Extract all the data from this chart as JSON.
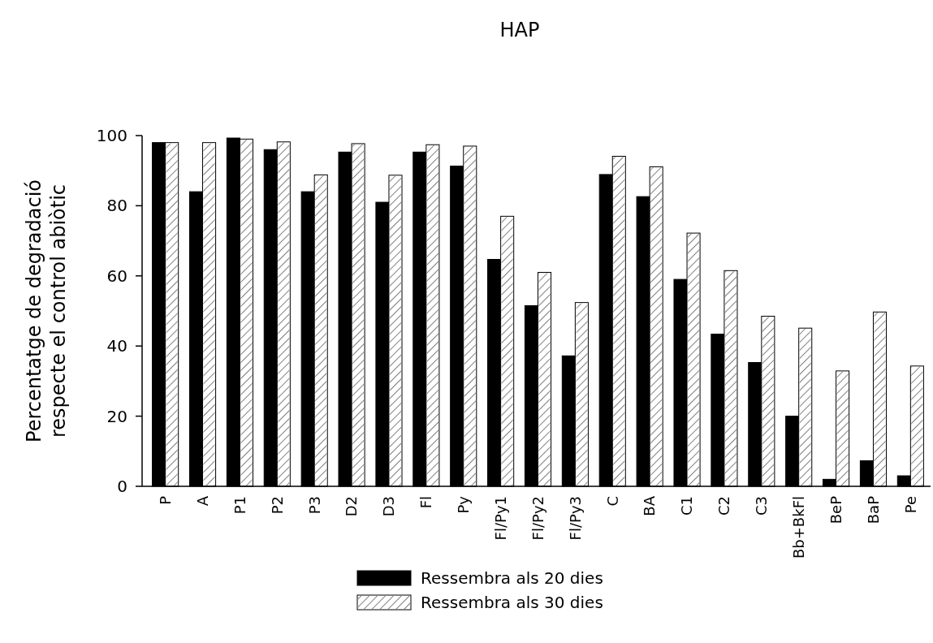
{
  "chart_data": {
    "type": "bar",
    "title": "HAP",
    "ylabel": "Percentatge de degradació\nrespecte el control abiòtic",
    "categories": [
      "P",
      "A",
      "P1",
      "P2",
      "P3",
      "D2",
      "D3",
      "Fl",
      "Py",
      "Fl/Py1",
      "Fl/Py2",
      "Fl/Py3",
      "C",
      "BA",
      "C1",
      "C2",
      "C3",
      "Bb+BkFl",
      "BeP",
      "BaP",
      "Pe"
    ],
    "series": [
      {
        "name": "Ressembra als 20 dies",
        "color": "#000000",
        "values": [
          98,
          84,
          99.3,
          96,
          84,
          95.3,
          81,
          95.3,
          91.3,
          64.7,
          51.5,
          37.2,
          88.9,
          82.6,
          59,
          43.4,
          35.3,
          20,
          2,
          7.3,
          3
        ]
      },
      {
        "name": "Ressembra als 30 dies",
        "color": "#ffffff",
        "values": [
          98,
          98,
          99,
          98.2,
          88.8,
          97.7,
          88.7,
          97.4,
          97,
          77,
          61,
          52.4,
          94.1,
          91.1,
          72.2,
          61.5,
          48.5,
          45.1,
          32.9,
          49.7,
          34.3
        ]
      }
    ],
    "ylim": [
      0,
      100
    ],
    "yticks": [
      0,
      20,
      40,
      60,
      80,
      100
    ],
    "legend": "bottom",
    "grid": false
  }
}
